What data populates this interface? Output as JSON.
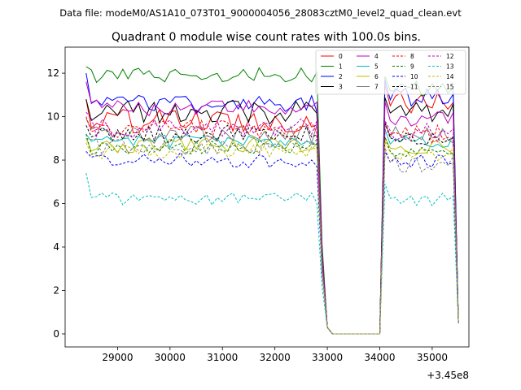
{
  "chart_data": {
    "type": "line",
    "suptitle": "Data file: modeM0/AS1A10_073T01_9000004056_28083cztM0_level2_quad_clean.evt",
    "title": "Quadrant 0 module wise count rates with 100.0s bins.",
    "xlabel": "",
    "ylabel": "",
    "x_offset_label": "+3.45e8",
    "xlim": [
      28000,
      35700
    ],
    "ylim": [
      -0.6,
      13.2
    ],
    "xticks": [
      29000,
      30000,
      31000,
      32000,
      33000,
      34000,
      35000
    ],
    "xtick_labels": [
      "29000",
      "30000",
      "31000",
      "32000",
      "33000",
      "34000",
      "35000"
    ],
    "yticks": [
      0,
      2,
      4,
      6,
      8,
      10,
      12
    ],
    "ytick_labels": [
      "0",
      "2",
      "4",
      "6",
      "8",
      "10",
      "12"
    ],
    "grid": false,
    "legend_position": "top-right",
    "legend_columns": 4,
    "x_start": 28400,
    "bin_width": 100,
    "series": [
      {
        "name": "0",
        "color": "#ff0000",
        "dashed": false,
        "base": 9.8,
        "amp": 0.55,
        "start": 10.8,
        "high": 10.7
      },
      {
        "name": "1",
        "color": "#008000",
        "dashed": false,
        "base": 11.9,
        "amp": 0.35,
        "start": 12.3,
        "high": 11.3
      },
      {
        "name": "2",
        "color": "#0000ff",
        "dashed": false,
        "base": 10.6,
        "amp": 0.45,
        "start": 12.0,
        "high": 10.9
      },
      {
        "name": "3",
        "color": "#000000",
        "dashed": false,
        "base": 10.2,
        "amp": 0.55,
        "start": 10.8,
        "high": 10.3
      },
      {
        "name": "4",
        "color": "#c000c0",
        "dashed": false,
        "base": 10.4,
        "amp": 0.4,
        "start": 11.6,
        "high": 9.9
      },
      {
        "name": "5",
        "color": "#00bfbf",
        "dashed": false,
        "base": 8.9,
        "amp": 0.35,
        "start": 9.2,
        "high": 8.8
      },
      {
        "name": "6",
        "color": "#bfbf00",
        "dashed": false,
        "base": 8.7,
        "amp": 0.35,
        "start": 9.0,
        "high": 8.6
      },
      {
        "name": "7",
        "color": "#808080",
        "dashed": false,
        "base": 9.2,
        "amp": 0.45,
        "start": 9.9,
        "high": 9.1
      },
      {
        "name": "8",
        "color": "#ff0000",
        "dashed": true,
        "base": 9.4,
        "amp": 0.45,
        "start": 10.0,
        "high": 9.2
      },
      {
        "name": "9",
        "color": "#008000",
        "dashed": true,
        "base": 8.6,
        "amp": 0.35,
        "start": 9.2,
        "high": 8.4
      },
      {
        "name": "10",
        "color": "#0000ff",
        "dashed": true,
        "base": 8.0,
        "amp": 0.35,
        "start": 8.4,
        "high": 7.9
      },
      {
        "name": "11",
        "color": "#000000",
        "dashed": true,
        "base": 9.2,
        "amp": 0.4,
        "start": 9.6,
        "high": 9.0
      },
      {
        "name": "12",
        "color": "#c000c0",
        "dashed": true,
        "base": 9.5,
        "amp": 0.45,
        "start": 10.2,
        "high": 9.3
      },
      {
        "name": "13",
        "color": "#00bfbf",
        "dashed": true,
        "base": 6.2,
        "amp": 0.3,
        "start": 7.4,
        "high": 6.2
      },
      {
        "name": "14",
        "color": "#bfbf00",
        "dashed": true,
        "base": 8.4,
        "amp": 0.35,
        "start": 8.8,
        "high": 8.3
      },
      {
        "name": "15",
        "color": "#808080",
        "dashed": true,
        "base": 8.6,
        "amp": 0.4,
        "start": 9.0,
        "high": 7.8
      }
    ]
  }
}
